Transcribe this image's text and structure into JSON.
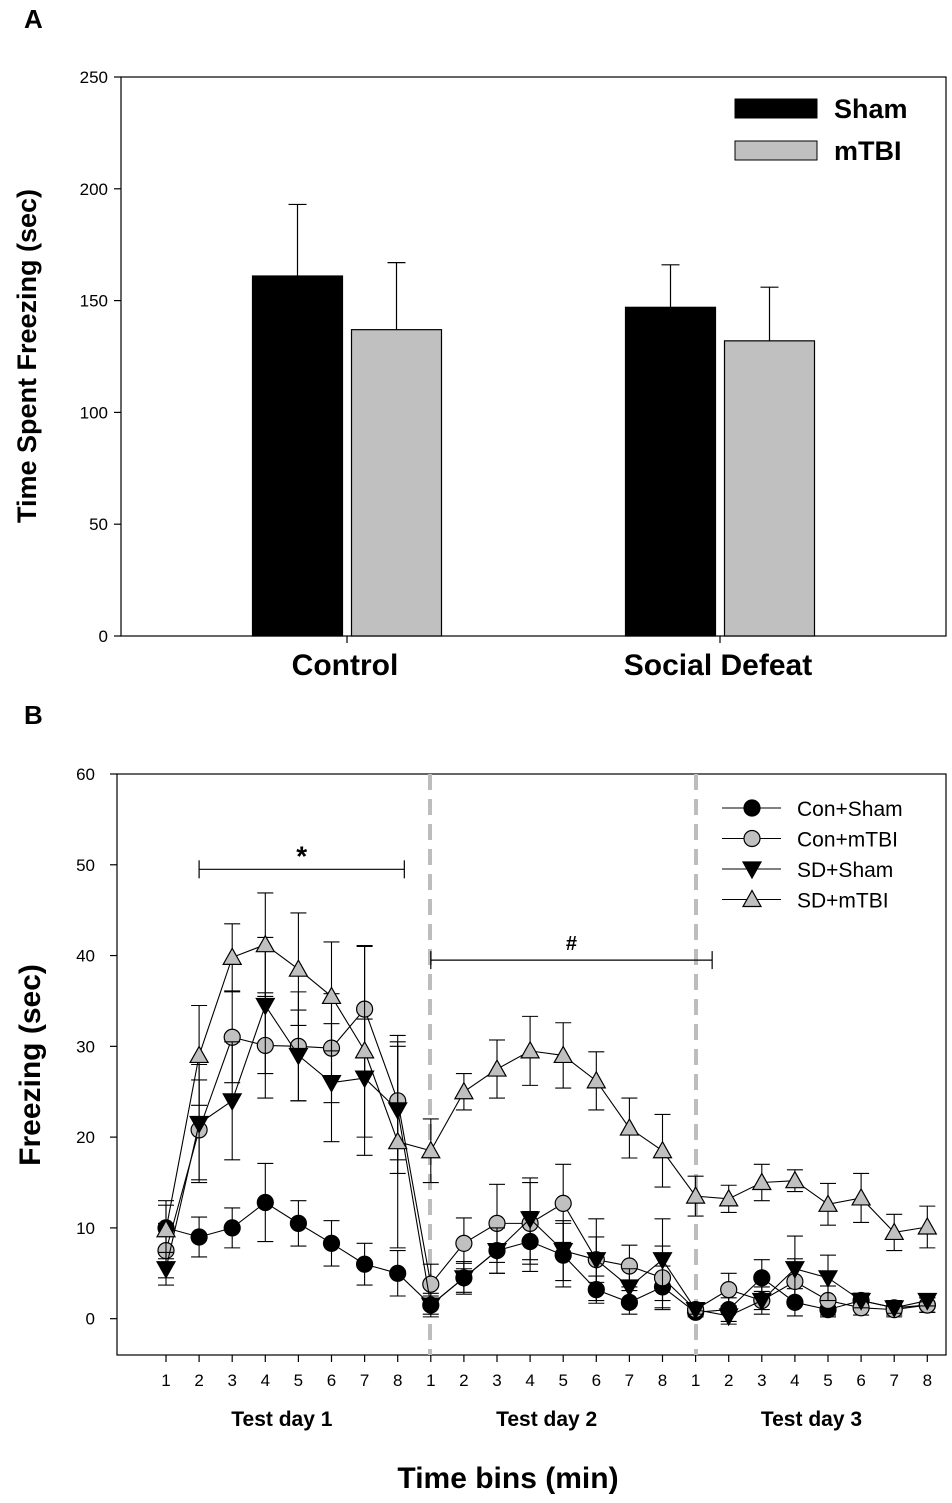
{
  "panel_labels": {
    "a": "A",
    "b": "B"
  },
  "chart_data": [
    {
      "type": "bar",
      "panel": "A",
      "title": "",
      "xlabel": "",
      "ylabel": "Time Spent Freezing (sec)",
      "ylim": [
        0,
        250
      ],
      "yticks": [
        "0",
        "50",
        "100",
        "150",
        "200",
        "250"
      ],
      "categories": [
        "Control",
        "Social Defeat"
      ],
      "legend_position": "top-right",
      "series": [
        {
          "name": "Sham",
          "color": "#000000",
          "values": [
            161,
            147
          ],
          "errors": [
            32,
            19
          ]
        },
        {
          "name": "mTBI",
          "color": "#c0c0c0",
          "values": [
            137,
            132
          ],
          "errors": [
            30,
            24
          ]
        }
      ]
    },
    {
      "type": "line",
      "panel": "B",
      "title": "",
      "xlabel": "Time bins (min)",
      "ylabel": "Freezing (sec)",
      "ylim": [
        -4,
        60
      ],
      "yticks": [
        "0",
        "10",
        "20",
        "30",
        "40",
        "50",
        "60"
      ],
      "x_tick_labels": [
        "1",
        "2",
        "3",
        "4",
        "5",
        "6",
        "7",
        "8",
        "1",
        "2",
        "3",
        "4",
        "5",
        "6",
        "7",
        "8",
        "1",
        "2",
        "3",
        "4",
        "5",
        "6",
        "7",
        "8"
      ],
      "groups": [
        "Test day 1",
        "Test day 2",
        "Test day 3"
      ],
      "legend_position": "top-right",
      "annotations": [
        {
          "text": "*",
          "from_bin": 2,
          "to_bin": 8.2,
          "y": 49.5
        },
        {
          "text": "#",
          "from_bin": 9,
          "to_bin": 17.5,
          "y": 39.5
        }
      ],
      "series": [
        {
          "name": "Con+Sham",
          "marker": "circle",
          "fill": "#000000",
          "values": [
            10,
            9,
            10,
            12.8,
            10.5,
            8.3,
            6,
            5,
            1.5,
            4.5,
            7.5,
            8.5,
            7,
            3.2,
            1.8,
            3.5,
            0.7,
            1,
            4.5,
            1.8,
            1,
            2,
            1.2,
            1.5
          ],
          "errors": [
            2.5,
            2.2,
            2.2,
            4.3,
            2.5,
            2.5,
            2.3,
            2.5,
            1.3,
            1.6,
            2.5,
            3.3,
            3.5,
            1.5,
            1.3,
            2.3,
            0.5,
            1.3,
            2,
            1.5,
            0.8,
            0.8,
            0.8,
            0.8
          ]
        },
        {
          "name": "Con+mTBI",
          "marker": "circle",
          "fill": "#c0c0c0",
          "values": [
            7.5,
            20.8,
            31,
            30.1,
            30,
            29.8,
            34.1,
            24,
            3.8,
            8.3,
            10.5,
            10.5,
            12.7,
            6.5,
            5.8,
            4.5,
            1,
            3.2,
            2,
            4.1,
            2,
            1.2,
            1,
            1.5
          ],
          "errors": [
            3,
            5.5,
            5,
            5.8,
            6,
            6,
            7,
            6.5,
            2.2,
            2.8,
            4.3,
            4.5,
            4.3,
            4.5,
            2.3,
            3.5,
            0.6,
            1.8,
            1,
            2.5,
            1.6,
            0.8,
            0.8,
            0.8
          ]
        },
        {
          "name": "SD+Sham",
          "marker": "triangle-down",
          "fill": "#000000",
          "values": [
            5.5,
            21.5,
            24,
            34.5,
            29,
            26,
            26.5,
            23,
            1.5,
            4.5,
            7.5,
            11,
            7.5,
            6.5,
            3.5,
            6.5,
            1,
            0.3,
            2,
            5.5,
            4.5,
            2,
            1.2,
            2
          ],
          "errors": [
            1.8,
            6.5,
            6.5,
            7.5,
            5,
            6.5,
            6.5,
            7,
            1,
            1.8,
            2.5,
            4.5,
            3.3,
            2.5,
            2,
            4.5,
            0.5,
            0.9,
            1.5,
            3.6,
            2.5,
            0.8,
            0.6,
            0.6
          ]
        },
        {
          "name": "SD+mTBI",
          "marker": "triangle-up",
          "fill": "#c0c0c0",
          "values": [
            9.8,
            29,
            39.8,
            41.2,
            38.5,
            35.5,
            29.5,
            19.5,
            18.5,
            25,
            27.5,
            29.5,
            29,
            26.2,
            21,
            18.5,
            13.5,
            13.2,
            15,
            15.2,
            12.6,
            13.3,
            9.5,
            10.1
          ],
          "errors": [
            3.2,
            5.5,
            3.7,
            5.7,
            6.2,
            6,
            11.5,
            11.7,
            3.5,
            2,
            3.2,
            3.8,
            3.6,
            3.2,
            3.3,
            4,
            2.2,
            1.5,
            2,
            1.2,
            2.3,
            2.7,
            2,
            2.3
          ]
        }
      ]
    }
  ]
}
